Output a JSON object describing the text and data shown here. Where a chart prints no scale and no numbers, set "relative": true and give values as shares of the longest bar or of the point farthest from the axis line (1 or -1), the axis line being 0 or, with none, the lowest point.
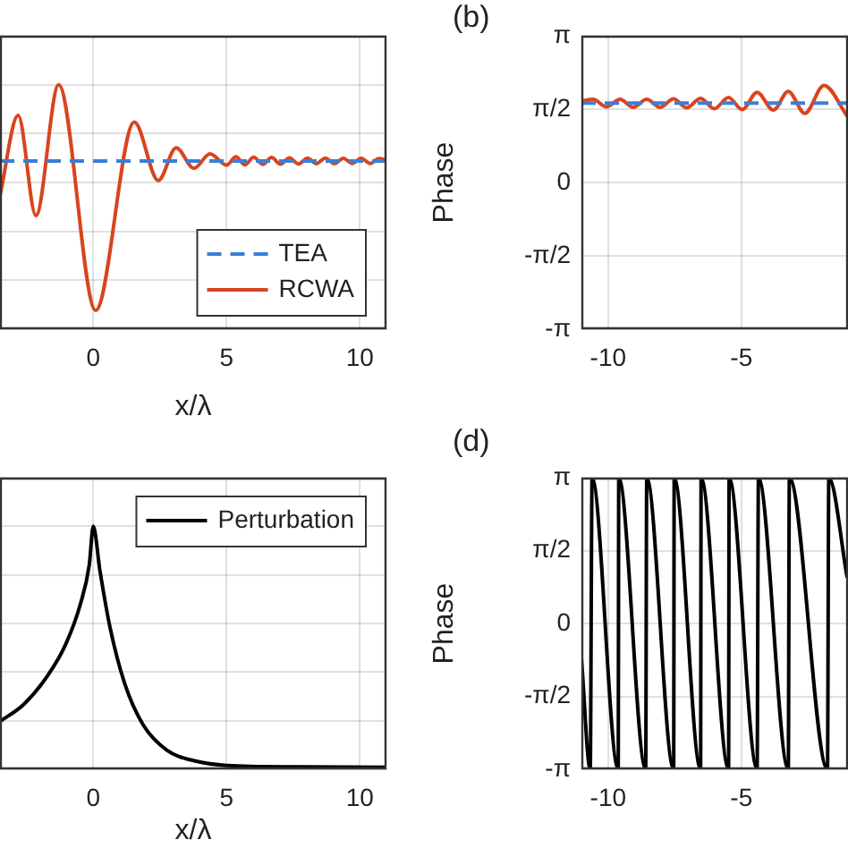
{
  "chart_data": [
    {
      "type": "line",
      "xlabel": "x/λ",
      "xlim": [
        -3.5,
        11
      ],
      "xticks": [
        0,
        5,
        10
      ],
      "relative": true,
      "grid": true,
      "legend": "bottom right",
      "series": [
        {
          "name": "TEA",
          "color": "#3a7fd5",
          "line_style": "dashed",
          "x": [
            -3.5,
            11
          ],
          "values": [
            0.688,
            0.688
          ]
        },
        {
          "name": "RCWA",
          "color": "#d9441f",
          "line_style": "solid",
          "x": [
            -3.5,
            -2.82,
            -2.15,
            -1.3,
            0.09,
            1.54,
            2.44,
            3.11,
            3.78,
            4.38,
            5.01,
            5.35,
            5.69,
            6.02,
            6.36,
            6.69,
            7.03,
            7.36,
            7.7,
            8.04,
            8.37,
            8.71,
            9.04,
            9.38,
            9.72,
            10.05,
            10.39,
            10.72,
            11
          ],
          "values": [
            0.547,
            0.874,
            0.465,
            1.0,
            0.077,
            0.847,
            0.608,
            0.742,
            0.658,
            0.717,
            0.671,
            0.705,
            0.672,
            0.703,
            0.674,
            0.702,
            0.675,
            0.701,
            0.676,
            0.7,
            0.677,
            0.7,
            0.677,
            0.699,
            0.678,
            0.699,
            0.678,
            0.698,
            0.69
          ]
        }
      ]
    },
    {
      "type": "line",
      "title": "(b)",
      "ylabel": "Phase",
      "xlim": [
        -11,
        -1
      ],
      "xticks": [
        -10,
        -5
      ],
      "ylim": [
        -3.1416,
        3.1416
      ],
      "yticks": [
        {
          "value": -3.1416,
          "label": "-π"
        },
        {
          "value": -1.5708,
          "label": "-π/2"
        },
        0,
        {
          "value": 1.5708,
          "label": "π/2"
        },
        {
          "value": 3.1416,
          "label": "π"
        }
      ],
      "grid": true,
      "series": [
        {
          "color": "#3a7fd5",
          "line_style": "dashed",
          "x": [
            -11,
            -1
          ],
          "values": [
            1.7,
            1.7
          ]
        },
        {
          "color": "#d9441f",
          "line_style": "solid",
          "x": [
            -11,
            -10.56,
            -10.07,
            -9.55,
            -9.06,
            -8.55,
            -8.05,
            -7.54,
            -7.05,
            -6.53,
            -6.02,
            -5.48,
            -4.97,
            -4.41,
            -3.8,
            -3.24,
            -2.62,
            -1.9,
            -1.03
          ],
          "values": [
            1.74,
            1.78,
            1.62,
            1.78,
            1.61,
            1.78,
            1.61,
            1.79,
            1.6,
            1.8,
            1.58,
            1.82,
            1.56,
            1.93,
            1.55,
            1.95,
            1.48,
            2.08,
            1.42
          ]
        }
      ]
    },
    {
      "type": "line",
      "xlabel": "x/λ",
      "xlim": [
        -3.5,
        11
      ],
      "xticks": [
        0,
        5,
        10
      ],
      "relative": true,
      "grid": true,
      "legend": "top right",
      "series": [
        {
          "name": "Perturbation",
          "color": "#000000",
          "line_style": "solid",
          "x": [
            -3.5,
            -2.61,
            -1.72,
            -1.04,
            -0.49,
            -0.15,
            0,
            0.25,
            0.63,
            1.19,
            1.86,
            2.76,
            3.87,
            4.99,
            7.7,
            11
          ],
          "values": [
            0.197,
            0.267,
            0.384,
            0.513,
            0.677,
            0.841,
            1.0,
            0.817,
            0.583,
            0.349,
            0.185,
            0.079,
            0.033,
            0.016,
            0.01,
            0.008
          ]
        }
      ]
    },
    {
      "type": "line",
      "title": "(d)",
      "ylabel": "Phase",
      "xlim": [
        -11,
        -1
      ],
      "xticks": [
        -10,
        -5
      ],
      "ylim": [
        -3.1416,
        3.1416
      ],
      "yticks": [
        {
          "value": -3.1416,
          "label": "-π"
        },
        {
          "value": -1.5708,
          "label": "-π/2"
        },
        0,
        {
          "value": 1.5708,
          "label": "π/2"
        },
        {
          "value": 3.1416,
          "label": "π"
        }
      ],
      "grid": true,
      "series": [
        {
          "color": "#000000",
          "line_style": "solid",
          "x": [
            -11,
            -10.67,
            -10.6,
            -9.62,
            -9.6,
            -8.59,
            -8.55,
            -7.54,
            -7.52,
            -6.53,
            -6.51,
            -5.48,
            -5.46,
            -4.41,
            -4.36,
            -3.24,
            -3.2,
            -1.77,
            -1.72,
            -1.03
          ],
          "values": [
            -0.75,
            -3.1416,
            3.1416,
            -3.1416,
            3.1416,
            -3.1416,
            3.1416,
            -3.1416,
            3.1416,
            -3.1416,
            3.1416,
            -3.1416,
            3.1416,
            -3.1416,
            3.1416,
            -3.1416,
            3.1416,
            -3.1416,
            3.1416,
            0.99
          ]
        }
      ]
    }
  ]
}
